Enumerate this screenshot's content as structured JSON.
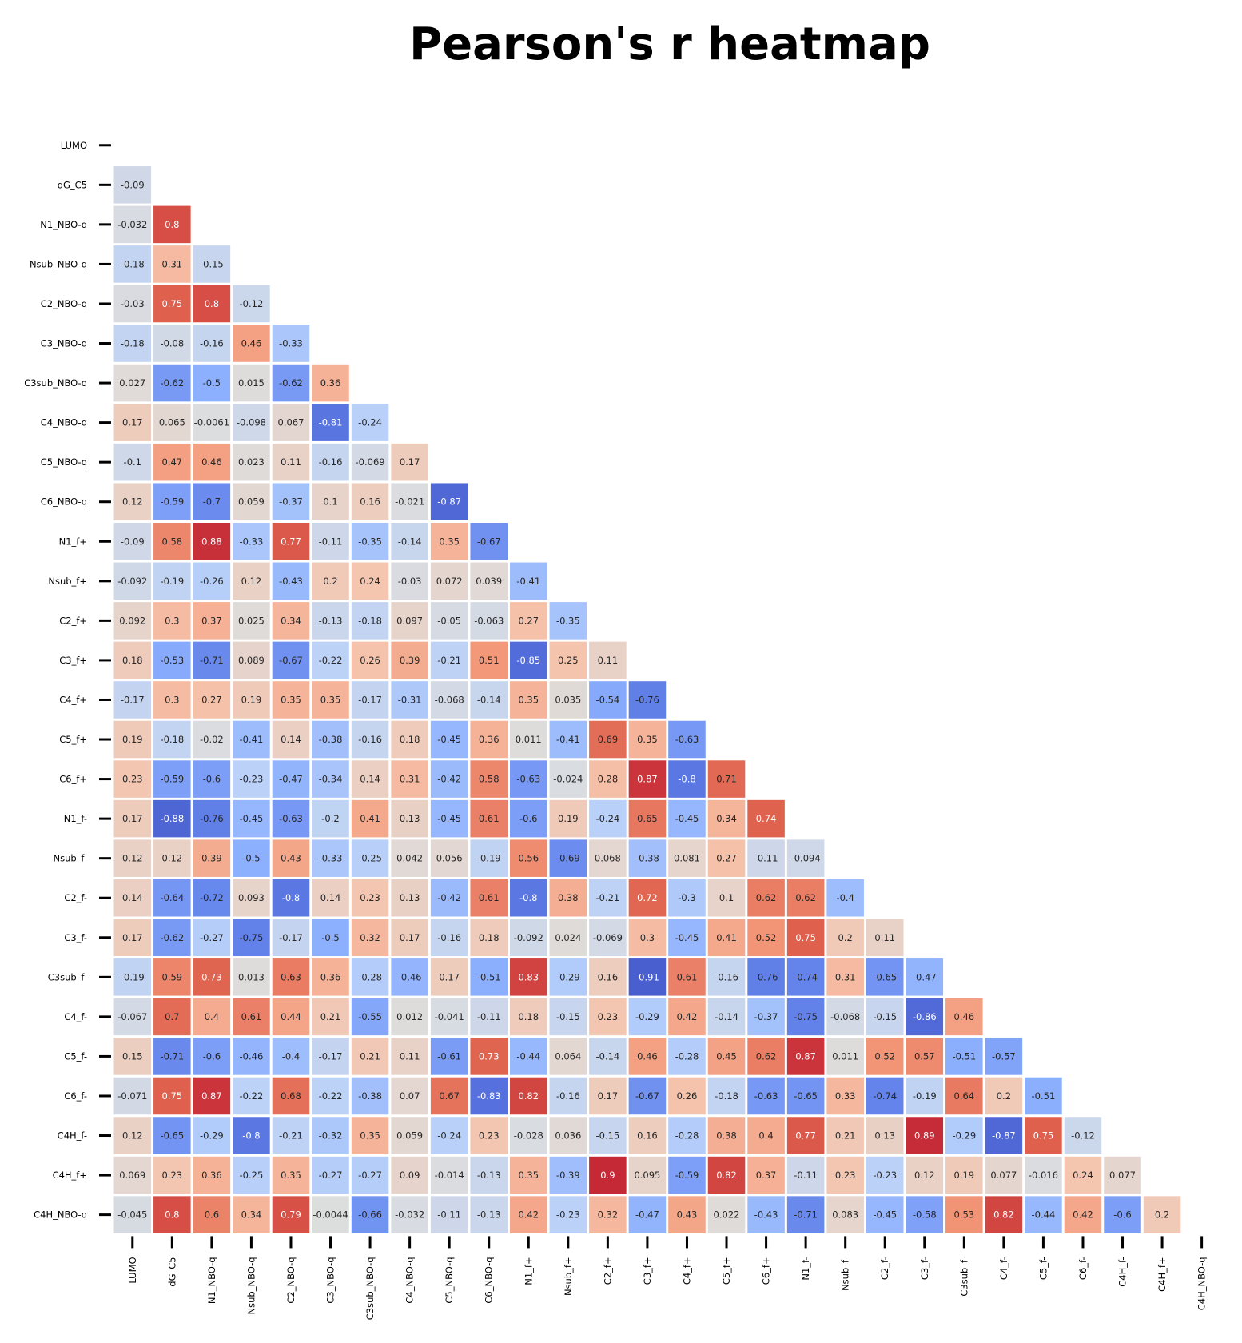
{
  "chart_data": {
    "type": "heatmap",
    "title": "Pearson's r heatmap",
    "colormap": "coolwarm",
    "vmin": -1,
    "vmax": 1,
    "mask": "upper-triangle-including-diagonal",
    "labels": [
      "LUMO",
      "dG_C5",
      "N1_NBO-q",
      "Nsub_NBO-q",
      "C2_NBO-q",
      "C3_NBO-q",
      "C3sub_NBO-q",
      "C4_NBO-q",
      "C5_NBO-q",
      "C6_NBO-q",
      "N1_f+",
      "Nsub_f+",
      "C2_f+",
      "C3_f+",
      "C4_f+",
      "C5_f+",
      "C6_f+",
      "N1_f-",
      "Nsub_f-",
      "C2_f-",
      "C3_f-",
      "C3sub_f-",
      "C4_f-",
      "C5_f-",
      "C6_f-",
      "C4H_f-",
      "C4H_f+",
      "C4H_NBO-q"
    ],
    "rows": [
      [],
      [
        "-0.09"
      ],
      [
        "-0.032",
        "0.8"
      ],
      [
        "-0.18",
        "0.31",
        "-0.15"
      ],
      [
        "-0.03",
        "0.75",
        "0.8",
        "-0.12"
      ],
      [
        "-0.18",
        "-0.08",
        "-0.16",
        "0.46",
        "-0.33"
      ],
      [
        "0.027",
        "-0.62",
        "-0.5",
        "0.015",
        "-0.62",
        "0.36"
      ],
      [
        "0.17",
        "0.065",
        "-0.0061",
        "-0.098",
        "0.067",
        "-0.81",
        "-0.24"
      ],
      [
        "-0.1",
        "0.47",
        "0.46",
        "0.023",
        "0.11",
        "-0.16",
        "-0.069",
        "0.17"
      ],
      [
        "0.12",
        "-0.59",
        "-0.7",
        "0.059",
        "-0.37",
        "0.1",
        "0.16",
        "-0.021",
        "-0.87"
      ],
      [
        "-0.09",
        "0.58",
        "0.88",
        "-0.33",
        "0.77",
        "-0.11",
        "-0.35",
        "-0.14",
        "0.35",
        "-0.67"
      ],
      [
        "-0.092",
        "-0.19",
        "-0.26",
        "0.12",
        "-0.43",
        "0.2",
        "0.24",
        "-0.03",
        "0.072",
        "0.039",
        "-0.41"
      ],
      [
        "0.092",
        "0.3",
        "0.37",
        "0.025",
        "0.34",
        "-0.13",
        "-0.18",
        "0.097",
        "-0.05",
        "-0.063",
        "0.27",
        "-0.35"
      ],
      [
        "0.18",
        "-0.53",
        "-0.71",
        "0.089",
        "-0.67",
        "-0.22",
        "0.26",
        "0.39",
        "-0.21",
        "0.51",
        "-0.85",
        "0.25",
        "0.11"
      ],
      [
        "-0.17",
        "0.3",
        "0.27",
        "0.19",
        "0.35",
        "0.35",
        "-0.17",
        "-0.31",
        "-0.068",
        "-0.14",
        "0.35",
        "0.035",
        "-0.54",
        "-0.76"
      ],
      [
        "0.19",
        "-0.18",
        "-0.02",
        "-0.41",
        "0.14",
        "-0.38",
        "-0.16",
        "0.18",
        "-0.45",
        "0.36",
        "0.011",
        "-0.41",
        "0.69",
        "0.35",
        "-0.63"
      ],
      [
        "0.23",
        "-0.59",
        "-0.6",
        "-0.23",
        "-0.47",
        "-0.34",
        "0.14",
        "0.31",
        "-0.42",
        "0.58",
        "-0.63",
        "-0.024",
        "0.28",
        "0.87",
        "-0.8",
        "0.71"
      ],
      [
        "0.17",
        "-0.88",
        "-0.76",
        "-0.45",
        "-0.63",
        "-0.2",
        "0.41",
        "0.13",
        "-0.45",
        "0.61",
        "-0.6",
        "0.19",
        "-0.24",
        "0.65",
        "-0.45",
        "0.34",
        "0.74"
      ],
      [
        "0.12",
        "0.12",
        "0.39",
        "-0.5",
        "0.43",
        "-0.33",
        "-0.25",
        "0.042",
        "0.056",
        "-0.19",
        "0.56",
        "-0.69",
        "0.068",
        "-0.38",
        "0.081",
        "0.27",
        "-0.11",
        "-0.094"
      ],
      [
        "0.14",
        "-0.64",
        "-0.72",
        "0.093",
        "-0.8",
        "0.14",
        "0.23",
        "0.13",
        "-0.42",
        "0.61",
        "-0.8",
        "0.38",
        "-0.21",
        "0.72",
        "-0.3",
        "0.1",
        "0.62",
        "0.62",
        "-0.4"
      ],
      [
        "0.17",
        "-0.62",
        "-0.27",
        "-0.75",
        "-0.17",
        "-0.5",
        "0.32",
        "0.17",
        "-0.16",
        "0.18",
        "-0.092",
        "0.024",
        "-0.069",
        "0.3",
        "-0.45",
        "0.41",
        "0.52",
        "0.75",
        "0.2",
        "0.11"
      ],
      [
        "-0.19",
        "0.59",
        "0.73",
        "0.013",
        "0.63",
        "0.36",
        "-0.28",
        "-0.46",
        "0.17",
        "-0.51",
        "0.83",
        "-0.29",
        "0.16",
        "-0.91",
        "0.61",
        "-0.16",
        "-0.76",
        "-0.74",
        "0.31",
        "-0.65",
        "-0.47"
      ],
      [
        "-0.067",
        "0.7",
        "0.4",
        "0.61",
        "0.44",
        "0.21",
        "-0.55",
        "0.012",
        "-0.041",
        "-0.11",
        "0.18",
        "-0.15",
        "0.23",
        "-0.29",
        "0.42",
        "-0.14",
        "-0.37",
        "-0.75",
        "-0.068",
        "-0.15",
        "-0.86",
        "0.46"
      ],
      [
        "0.15",
        "-0.71",
        "-0.6",
        "-0.46",
        "-0.4",
        "-0.17",
        "0.21",
        "0.11",
        "-0.61",
        "0.73",
        "-0.44",
        "0.064",
        "-0.14",
        "0.46",
        "-0.28",
        "0.45",
        "0.62",
        "0.87",
        "0.011",
        "0.52",
        "0.57",
        "-0.51",
        "-0.57"
      ],
      [
        "-0.071",
        "0.75",
        "0.87",
        "-0.22",
        "0.68",
        "-0.22",
        "-0.38",
        "0.07",
        "0.67",
        "-0.83",
        "0.82",
        "-0.16",
        "0.17",
        "-0.67",
        "0.26",
        "-0.18",
        "-0.63",
        "-0.65",
        "0.33",
        "-0.74",
        "-0.19",
        "0.64",
        "0.2",
        "-0.51"
      ],
      [
        "0.12",
        "-0.65",
        "-0.29",
        "-0.8",
        "-0.21",
        "-0.32",
        "0.35",
        "0.059",
        "-0.24",
        "0.23",
        "-0.028",
        "0.036",
        "-0.15",
        "0.16",
        "-0.28",
        "0.38",
        "0.4",
        "0.77",
        "0.21",
        "0.13",
        "0.89",
        "-0.29",
        "-0.87",
        "0.75",
        "-0.12"
      ],
      [
        "0.069",
        "0.23",
        "0.36",
        "-0.25",
        "0.35",
        "-0.27",
        "-0.27",
        "0.09",
        "-0.014",
        "-0.13",
        "0.35",
        "-0.39",
        "0.9",
        "0.095",
        "-0.59",
        "0.82",
        "0.37",
        "-0.11",
        "0.23",
        "-0.23",
        "0.12",
        "0.19",
        "0.077",
        "-0.016",
        "0.24",
        "0.077"
      ],
      [
        "-0.045",
        "0.8",
        "0.6",
        "0.34",
        "0.79",
        "-0.0044",
        "-0.66",
        "-0.032",
        "-0.11",
        "-0.13",
        "0.42",
        "-0.23",
        "0.32",
        "-0.47",
        "0.43",
        "0.022",
        "-0.43",
        "-0.71",
        "0.083",
        "-0.45",
        "-0.58",
        "0.53",
        "0.82",
        "-0.44",
        "0.42",
        "-0.6",
        "0.2"
      ]
    ]
  }
}
